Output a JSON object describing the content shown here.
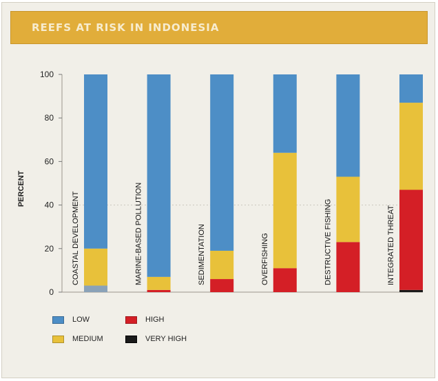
{
  "colors": {
    "low": "#4d8ec6",
    "medium": "#e8c13a",
    "high": "#d41f26",
    "very_high": "#1a1a1a"
  },
  "chart_data": {
    "type": "bar",
    "stacked": true,
    "title": "REEFS AT RISK IN INDONESIA",
    "ylabel": "PERCENT",
    "xlabel": "",
    "ylim": [
      0,
      100
    ],
    "yticks": [
      0,
      20,
      40,
      60,
      80,
      100
    ],
    "grid": false,
    "legend_placement": "bottom-left",
    "categories": [
      "COASTAL DEVELOPMENT",
      "MARINE-BASED POLLUTION",
      "SEDIMENTATION",
      "OVERFISHING",
      "DESTRUCTIVE FISHING",
      "INTEGRATED THREAT"
    ],
    "series": [
      {
        "name": "VERY HIGH",
        "key": "very_high",
        "values": [
          0,
          0,
          0,
          0,
          0,
          1
        ]
      },
      {
        "name": "HIGH",
        "key": "high",
        "values": [
          0,
          1,
          6,
          11,
          23,
          46
        ]
      },
      {
        "name": "MEDIUM",
        "key": "medium",
        "values": [
          17,
          6,
          13,
          53,
          30,
          40
        ]
      },
      {
        "name": "LOW",
        "key": "low",
        "values": [
          80,
          93,
          81,
          36,
          47,
          13
        ]
      }
    ],
    "unlabeled_bottom_segment": [
      3,
      0,
      0,
      0,
      0,
      0
    ]
  },
  "legend": {
    "items": [
      {
        "key": "low",
        "label": "LOW"
      },
      {
        "key": "high",
        "label": "HIGH"
      },
      {
        "key": "medium",
        "label": "MEDIUM"
      },
      {
        "key": "very_high",
        "label": "VERY HIGH"
      }
    ]
  }
}
